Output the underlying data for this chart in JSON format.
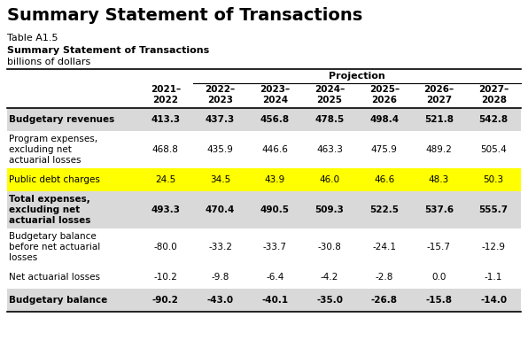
{
  "title": "Summary Statement of Transactions",
  "table_label": "Table A1.5",
  "table_title": "Summary Statement of Transactions",
  "table_subtitle": "billions of dollars",
  "projection_label": "Projection",
  "col_headers_line1": [
    "2021–",
    "2022–",
    "2023–",
    "2024–",
    "2025–",
    "2026–",
    "2027–"
  ],
  "col_headers_line2": [
    "2022",
    "2023",
    "2024",
    "2025",
    "2026",
    "2027",
    "2028"
  ],
  "rows": [
    {
      "label": "Budgetary revenues",
      "values": [
        "413.3",
        "437.3",
        "456.8",
        "478.5",
        "498.4",
        "521.8",
        "542.8"
      ],
      "bold": true,
      "bg": "#d9d9d9",
      "highlight": false,
      "nlines": 1
    },
    {
      "label": "Program expenses,\nexcluding net\nactuarial losses",
      "values": [
        "468.8",
        "435.9",
        "446.6",
        "463.3",
        "475.9",
        "489.2",
        "505.4"
      ],
      "bold": false,
      "bg": "#ffffff",
      "highlight": false,
      "nlines": 3
    },
    {
      "label": "Public debt charges",
      "values": [
        "24.5",
        "34.5",
        "43.9",
        "46.0",
        "46.6",
        "48.3",
        "50.3"
      ],
      "bold": false,
      "bg": "#ffff00",
      "highlight": true,
      "nlines": 1
    },
    {
      "label": "Total expenses,\nexcluding net\nactuarial losses",
      "values": [
        "493.3",
        "470.4",
        "490.5",
        "509.3",
        "522.5",
        "537.6",
        "555.7"
      ],
      "bold": true,
      "bg": "#d9d9d9",
      "highlight": false,
      "nlines": 3
    },
    {
      "label": "Budgetary balance\nbefore net actuarial\nlosses",
      "values": [
        "-80.0",
        "-33.2",
        "-33.7",
        "-30.8",
        "-24.1",
        "-15.7",
        "-12.9"
      ],
      "bold": false,
      "bg": "#ffffff",
      "highlight": false,
      "nlines": 3
    },
    {
      "label": "Net actuarial losses",
      "values": [
        "-10.2",
        "-9.8",
        "-6.4",
        "-4.2",
        "-2.8",
        "0.0",
        "-1.1"
      ],
      "bold": false,
      "bg": "#ffffff",
      "highlight": false,
      "nlines": 1
    },
    {
      "label": "Budgetary balance",
      "values": [
        "-90.2",
        "-43.0",
        "-40.1",
        "-35.0",
        "-26.8",
        "-15.8",
        "-14.0"
      ],
      "bold": true,
      "bg": "#d9d9d9",
      "highlight": false,
      "nlines": 1
    }
  ],
  "bg_color": "#ffffff",
  "yellow": "#ffff00",
  "gray": "#d9d9d9"
}
